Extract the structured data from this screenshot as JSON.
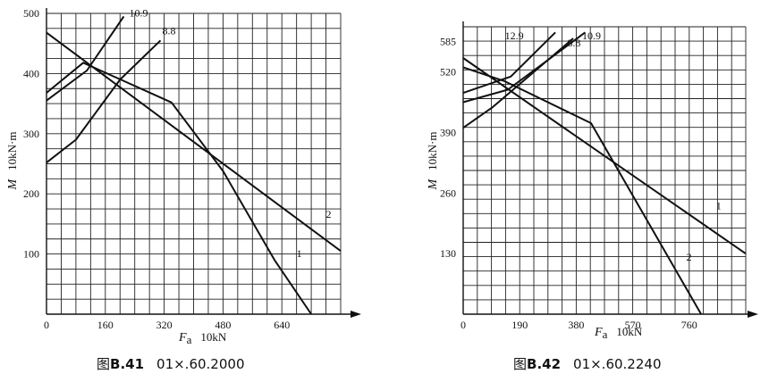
{
  "chart_data": [
    {
      "type": "line",
      "caption_prefix": "图",
      "caption_bold": "B.41",
      "caption_rest": "01×.60.2000",
      "ylabel_symbol": "M",
      "ylabel_unit": "10kN·m",
      "xlabel_symbol": "F",
      "xlabel_subscript": "a",
      "xlabel_unit": "10kN",
      "xlim": [
        0,
        800
      ],
      "ylim": [
        0,
        500
      ],
      "grid": true,
      "x_ticks": [
        "0",
        "160",
        "320",
        "480",
        "640"
      ],
      "x_tick_values": [
        0,
        160,
        320,
        480,
        640
      ],
      "y_ticks": [
        "100",
        "200",
        "300",
        "400",
        "500"
      ],
      "y_tick_values": [
        100,
        200,
        300,
        400,
        500
      ],
      "series": [
        {
          "name": "1",
          "x": [
            0,
            100,
            340,
            480,
            620,
            720
          ],
          "y": [
            368,
            418,
            352,
            238,
            90,
            0
          ],
          "label_at": [
            680,
            95
          ]
        },
        {
          "name": "2",
          "x": [
            0,
            800
          ],
          "y": [
            468,
            105
          ],
          "label_at": [
            760,
            160
          ]
        },
        {
          "name": "10.9",
          "x": [
            0,
            110,
            210
          ],
          "y": [
            355,
            405,
            495
          ],
          "label_at": [
            225,
            495
          ]
        },
        {
          "name": "8.8",
          "x": [
            0,
            80,
            200,
            310
          ],
          "y": [
            252,
            290,
            390,
            455
          ],
          "label_at": [
            315,
            465
          ]
        }
      ]
    },
    {
      "type": "line",
      "caption_prefix": "图",
      "caption_bold": "B.42",
      "caption_rest": "01×.60.2240",
      "ylabel_symbol": "M",
      "ylabel_unit": "10kN·m",
      "xlabel_symbol": "F",
      "xlabel_subscript": "a",
      "xlabel_unit": "10kN",
      "xlim": [
        0,
        950
      ],
      "ylim": [
        0,
        617
      ],
      "grid": true,
      "x_ticks": [
        "0",
        "190",
        "380",
        "570",
        "760"
      ],
      "x_tick_values": [
        0,
        190,
        380,
        570,
        760
      ],
      "y_ticks": [
        "130",
        "260",
        "390",
        "520",
        "585"
      ],
      "y_tick_values": [
        130,
        260,
        390,
        520,
        585
      ],
      "series": [
        {
          "name": "1",
          "x": [
            0,
            950
          ],
          "y": [
            550,
            130
          ],
          "label_at": [
            850,
            225
          ]
        },
        {
          "name": "2",
          "x": [
            0,
            140,
            430,
            800
          ],
          "y": [
            530,
            500,
            410,
            0
          ],
          "label_at": [
            750,
            115
          ]
        },
        {
          "name": "12.9",
          "x": [
            0,
            160,
            310
          ],
          "y": [
            475,
            510,
            605
          ],
          "label_at": [
            140,
            590
          ]
        },
        {
          "name": "10.9",
          "x": [
            0,
            150,
            410
          ],
          "y": [
            455,
            482,
            605
          ],
          "label_at": [
            400,
            590
          ]
        },
        {
          "name": "8.8",
          "x": [
            0,
            100,
            370
          ],
          "y": [
            400,
            445,
            592
          ],
          "label_at": [
            350,
            575
          ]
        }
      ]
    }
  ]
}
